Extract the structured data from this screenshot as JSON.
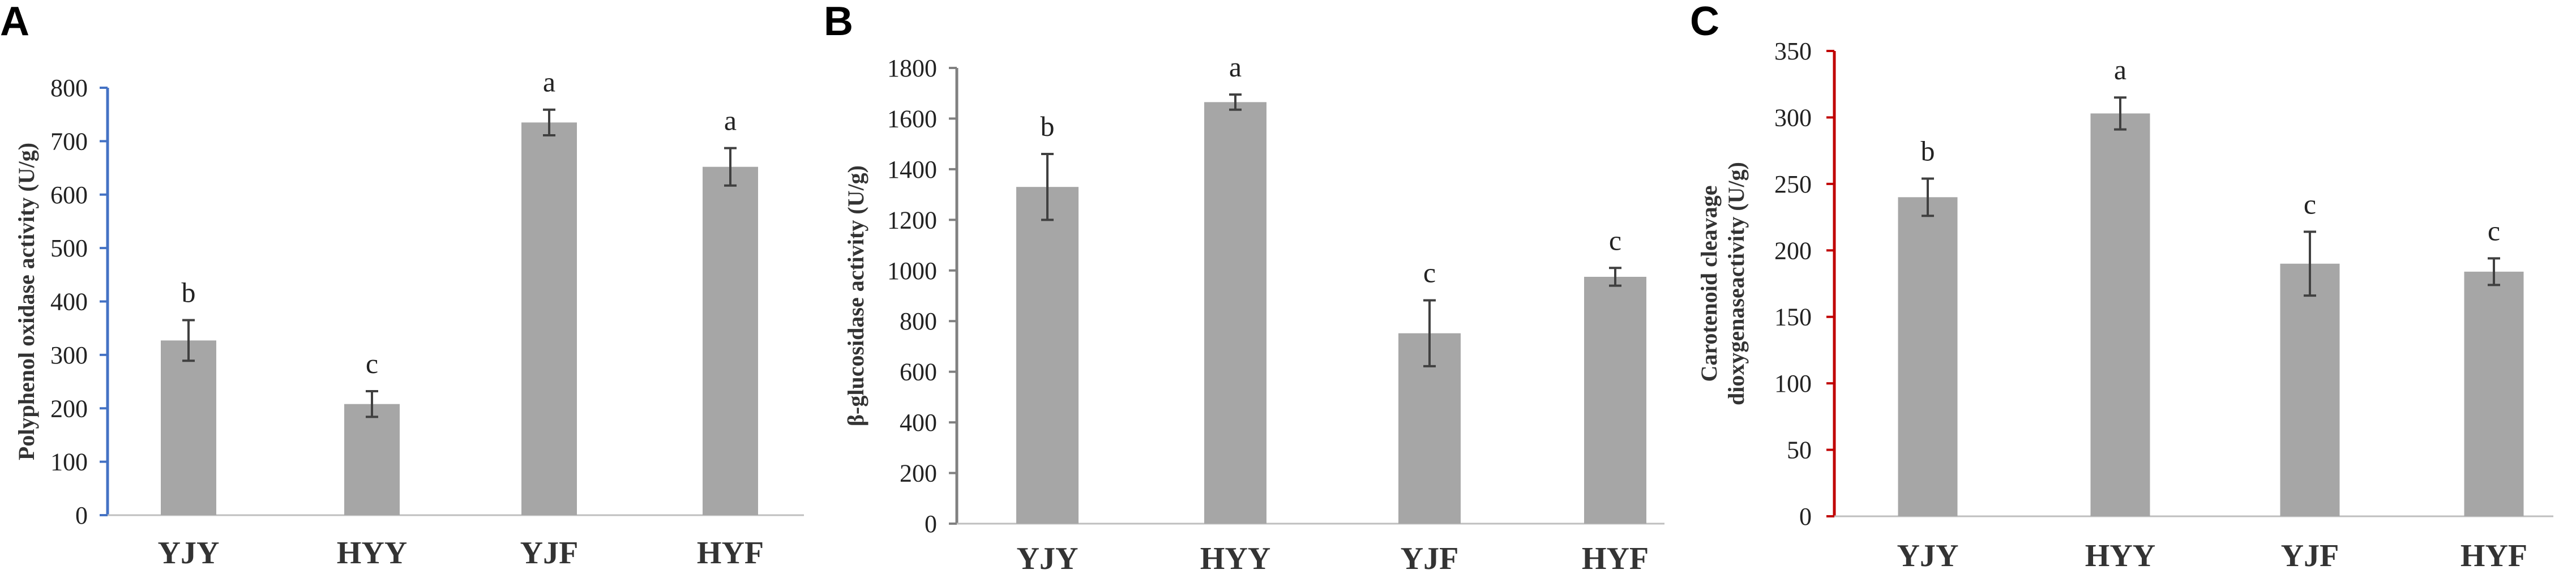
{
  "figure": {
    "bar_color": "#a6a6a6",
    "errorbar_color": "#404040"
  },
  "chart_data": [
    {
      "panel": "A",
      "type": "bar",
      "categories": [
        "YJY",
        "HYY",
        "YJF",
        "HYF"
      ],
      "values": [
        327,
        208,
        735,
        652
      ],
      "errors": [
        38,
        24,
        24,
        35
      ],
      "significance": [
        "b",
        "c",
        "a",
        "a"
      ],
      "ylabel": "Polyphenol oxidase activity (U/g)",
      "ylim": [
        0,
        800
      ],
      "yticks": [
        0,
        100,
        200,
        300,
        400,
        500,
        600,
        700,
        800
      ],
      "axis_color": "#4472c4",
      "grid": false,
      "legend": "none"
    },
    {
      "panel": "B",
      "type": "bar",
      "categories": [
        "YJY",
        "HYY",
        "YJF",
        "HYF"
      ],
      "values": [
        1330,
        1665,
        752,
        975
      ],
      "errors": [
        130,
        30,
        130,
        35
      ],
      "significance": [
        "b",
        "a",
        "c",
        "c"
      ],
      "ylabel": "β-glucosidase activity (U/g)",
      "ylim": [
        0,
        1800
      ],
      "yticks": [
        0,
        200,
        400,
        600,
        800,
        1000,
        1200,
        1400,
        1600,
        1800
      ],
      "axis_color": "#808080",
      "grid": false,
      "legend": "none"
    },
    {
      "panel": "C",
      "type": "bar",
      "categories": [
        "YJY",
        "HYY",
        "YJF",
        "HYF"
      ],
      "values": [
        240,
        303,
        190,
        184
      ],
      "errors": [
        14,
        12,
        24,
        10
      ],
      "significance": [
        "b",
        "a",
        "c",
        "c"
      ],
      "ylabel_lines": [
        "Carotenoid cleavage",
        "dioxygenaseactivity (U/g)"
      ],
      "ylim": [
        0,
        350
      ],
      "yticks": [
        0,
        50,
        100,
        150,
        200,
        250,
        300,
        350
      ],
      "axis_color": "#c00000",
      "grid": false,
      "legend": "none"
    }
  ]
}
